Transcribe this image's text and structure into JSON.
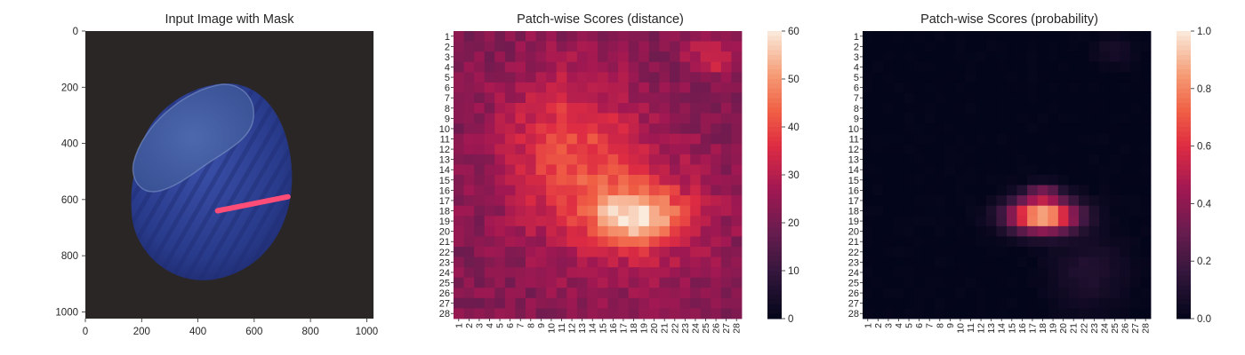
{
  "colors": {
    "background": "#ffffff",
    "axis_text": "#262626",
    "mask": "#ff4d78",
    "photo_bg": "#2a2626",
    "colormap": "rocket"
  },
  "chart_data": [
    {
      "type": "image",
      "title": "Input Image with Mask",
      "description_of_content": "hazelnut with a red anomaly mask",
      "xlim": [
        0,
        1024
      ],
      "ylim": [
        1024,
        0
      ],
      "x_ticks": [
        "0",
        "200",
        "400",
        "600",
        "800",
        "1000"
      ],
      "y_ticks": [
        "0",
        "200",
        "400",
        "600",
        "800",
        "1000"
      ],
      "mask_segment": {
        "x": [
          470,
          720
        ],
        "y": [
          640,
          590
        ]
      }
    },
    {
      "type": "heatmap",
      "title": "Patch-wise Scores (distance)",
      "rows": 28,
      "cols": 28,
      "row_labels": [
        "1",
        "2",
        "3",
        "4",
        "5",
        "6",
        "7",
        "8",
        "9",
        "10",
        "11",
        "12",
        "13",
        "14",
        "15",
        "16",
        "17",
        "18",
        "19",
        "20",
        "21",
        "22",
        "23",
        "24",
        "25",
        "26",
        "27",
        "28"
      ],
      "col_labels": [
        "1",
        "2",
        "3",
        "4",
        "5",
        "6",
        "7",
        "8",
        "9",
        "10",
        "11",
        "12",
        "13",
        "14",
        "15",
        "16",
        "17",
        "18",
        "19",
        "20",
        "21",
        "22",
        "23",
        "24",
        "25",
        "26",
        "27",
        "28"
      ],
      "vmin": 0,
      "vmax": 60,
      "colorbar_ticks": [
        "0",
        "10",
        "20",
        "30",
        "40",
        "50",
        "60"
      ],
      "colormap": "rocket",
      "components": [
        {
          "kind": "base",
          "value": 22
        },
        {
          "kind": "blob",
          "row": 11,
          "col": 11.5,
          "sigma_r": 5,
          "sigma_c": 4.5,
          "amp": 15
        },
        {
          "kind": "blob",
          "row": 18,
          "col": 17,
          "sigma_r": 5,
          "sigma_c": 6,
          "amp": 12
        },
        {
          "kind": "blob",
          "row": 18.5,
          "col": 18.5,
          "sigma_r": 1.8,
          "sigma_c": 3.2,
          "amp": 26
        },
        {
          "kind": "blob",
          "row": 3,
          "col": 25.5,
          "sigma_r": 1.3,
          "sigma_c": 1.5,
          "amp": 13
        }
      ],
      "peak_value_approx": 60,
      "peak_location": {
        "row": 18.5,
        "col": 18.5
      }
    },
    {
      "type": "heatmap",
      "title": "Patch-wise Scores (probability)",
      "rows": 28,
      "cols": 28,
      "row_labels": [
        "1",
        "2",
        "3",
        "4",
        "5",
        "6",
        "7",
        "8",
        "9",
        "10",
        "11",
        "12",
        "13",
        "14",
        "15",
        "16",
        "17",
        "18",
        "19",
        "20",
        "21",
        "22",
        "23",
        "24",
        "25",
        "26",
        "27",
        "28"
      ],
      "col_labels": [
        "1",
        "2",
        "3",
        "4",
        "5",
        "6",
        "7",
        "8",
        "9",
        "10",
        "11",
        "12",
        "13",
        "14",
        "15",
        "16",
        "17",
        "18",
        "19",
        "20",
        "21",
        "22",
        "23",
        "24",
        "25",
        "26",
        "27",
        "28"
      ],
      "vmin": 0.0,
      "vmax": 1.0,
      "colorbar_ticks": [
        "0.0",
        "0.2",
        "0.4",
        "0.6",
        "0.8",
        "1.0"
      ],
      "colormap": "rocket",
      "components": [
        {
          "kind": "base",
          "value": 0
        },
        {
          "kind": "blob",
          "row": 18.5,
          "col": 18,
          "sigma_r": 1.1,
          "sigma_c": 2.3,
          "amp": 0.95
        },
        {
          "kind": "blob",
          "row": 16.3,
          "col": 18,
          "sigma_r": 0.6,
          "sigma_c": 1.2,
          "amp": 0.3
        },
        {
          "kind": "blob",
          "row": 24,
          "col": 22.5,
          "sigma_r": 2.5,
          "sigma_c": 2.5,
          "amp": 0.1
        },
        {
          "kind": "blob",
          "row": 2.5,
          "col": 25,
          "sigma_r": 1,
          "sigma_c": 1.2,
          "amp": 0.08
        }
      ],
      "peak_value_approx": 0.95,
      "peak_location": {
        "row": 18.5,
        "col": 18
      }
    }
  ]
}
